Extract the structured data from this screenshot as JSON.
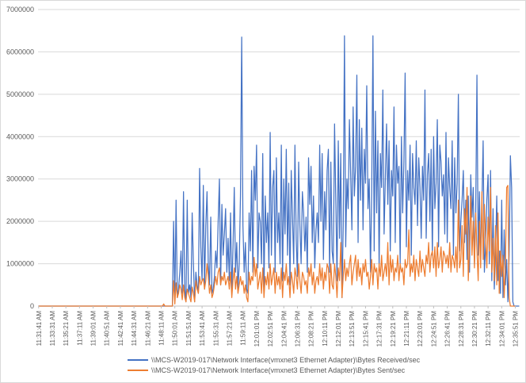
{
  "chart_data": {
    "type": "line",
    "title": "",
    "xlabel": "",
    "ylabel": "",
    "ylim": [
      0,
      7000000
    ],
    "yticks": [
      0,
      1000000,
      2000000,
      3000000,
      4000000,
      5000000,
      6000000,
      7000000
    ],
    "ytick_labels": [
      "0",
      "1000000",
      "2000000",
      "3000000",
      "4000000",
      "5000000",
      "6000000",
      "7000000"
    ],
    "grid": "horizontal",
    "legend_position": "bottom",
    "x_tick_labels": [
      "11:31:41 AM",
      "11:33:31 AM",
      "11:35:21 AM",
      "11:37:11 AM",
      "11:39:01 AM",
      "11:40:51 AM",
      "11:42:41 AM",
      "11:44:31 AM",
      "11:46:21 AM",
      "11:48:11 AM",
      "11:50:01 AM",
      "11:51:51 AM",
      "11:53:41 AM",
      "11:55:31 AM",
      "11:57:21 AM",
      "11:59:11 AM",
      "12:01:01 PM",
      "12:02:51 PM",
      "12:04:41 PM",
      "12:06:31 PM",
      "12:08:21 PM",
      "12:10:11 PM",
      "12:12:01 PM",
      "12:13:51 PM",
      "12:15:41 PM",
      "12:17:31 PM",
      "12:19:21 PM",
      "12:21:11 PM",
      "12:23:01 PM",
      "12:24:51 PM",
      "12:26:41 PM",
      "12:28:31 PM",
      "12:30:21 PM",
      "12:32:11 PM",
      "12:34:01 PM",
      "12:35:51 PM",
      "12:37:41 PM",
      "12:39:31 PM",
      "12:41:21 PM",
      "12:43:11 PM",
      "12:45:01 PM",
      "12:46:51 PM",
      "12:48:41 PM",
      "12:50:31 PM",
      "12:52:21 PM",
      "12:54:11 PM",
      "12:56:01 PM",
      "12:57:51 PM",
      "12:59:41 PM",
      "1:01:31 PM",
      "1:03:21 PM",
      "1:05:11 PM"
    ],
    "x_tick_step_samples": 11,
    "sample_interval_seconds": 10,
    "series": [
      {
        "name": "\\\\MCS-W2019-017\\Network Interface(vmxnet3 Ethernet Adapter)\\Bytes Received/sec",
        "color": "#4472c4",
        "values": [
          0,
          0,
          0,
          0,
          0,
          0,
          0,
          0,
          0,
          0,
          0,
          0,
          0,
          0,
          0,
          0,
          0,
          0,
          0,
          0,
          0,
          0,
          0,
          0,
          0,
          0,
          0,
          0,
          0,
          0,
          0,
          0,
          0,
          0,
          0,
          0,
          0,
          0,
          0,
          0,
          0,
          0,
          0,
          0,
          0,
          0,
          0,
          0,
          0,
          0,
          0,
          0,
          0,
          0,
          0,
          0,
          0,
          0,
          0,
          0,
          0,
          0,
          0,
          0,
          0,
          0,
          0,
          0,
          0,
          0,
          0,
          0,
          0,
          0,
          0,
          0,
          0,
          0,
          0,
          0,
          0,
          0,
          0,
          0,
          0,
          0,
          0,
          0,
          0,
          0,
          0,
          0,
          0,
          0,
          0,
          0,
          0,
          0,
          0,
          0,
          0,
          0,
          0,
          0,
          0,
          0,
          0,
          0,
          0,
          2000000,
          100000,
          2500000,
          200000,
          400000,
          800000,
          1300000,
          300000,
          2700000,
          400000,
          100000,
          2500000,
          300000,
          500000,
          200000,
          2200000,
          1000000,
          100000,
          800000,
          500000,
          300000,
          3250000,
          1400000,
          600000,
          2850000,
          400000,
          1900000,
          2700000,
          1000000,
          500000,
          2100000,
          300000,
          400000,
          700000,
          1300000,
          900000,
          2000000,
          3000000,
          500000,
          2400000,
          1200000,
          1700000,
          2300000,
          800000,
          1600000,
          600000,
          2200000,
          300000,
          1400000,
          2800000,
          800000,
          1500000,
          400000,
          1000000,
          2600000,
          6350000,
          1900000,
          800000,
          1500000,
          400000,
          300000,
          2200000,
          1300000,
          3200000,
          800000,
          3300000,
          2500000,
          3800000,
          900000,
          2200000,
          2000000,
          1000000,
          3600000,
          400000,
          2600000,
          1500000,
          2200000,
          900000,
          4100000,
          1200000,
          2800000,
          3200000,
          800000,
          3500000,
          1500000,
          2200000,
          1000000,
          3800000,
          600000,
          3000000,
          1700000,
          3700000,
          1200000,
          2900000,
          500000,
          3200000,
          2100000,
          1000000,
          3800000,
          1600000,
          700000,
          3400000,
          1900000,
          1000000,
          2700000,
          2200000,
          1300000,
          2100000,
          800000,
          3500000,
          2400000,
          3300000,
          1500000,
          2600000,
          900000,
          1800000,
          2200000,
          1500000,
          3800000,
          2000000,
          3600000,
          1100000,
          2700000,
          1800000,
          3200000,
          3700000,
          800000,
          3400000,
          1300000,
          1000000,
          4300000,
          2500000,
          600000,
          3900000,
          1600000,
          3600000,
          200000,
          1900000,
          6380000,
          1400000,
          3000000,
          2300000,
          4400000,
          3100000,
          1800000,
          4700000,
          2600000,
          3300000,
          5450000,
          1500000,
          4400000,
          2500000,
          4200000,
          1800000,
          3700000,
          2900000,
          5200000,
          2300000,
          3000000,
          800000,
          2700000,
          6380000,
          1300000,
          4600000,
          2200000,
          3900000,
          900000,
          3600000,
          2800000,
          5100000,
          1700000,
          3000000,
          4300000,
          2400000,
          3900000,
          1300000,
          3200000,
          2600000,
          4700000,
          1500000,
          3800000,
          2900000,
          3300000,
          1000000,
          4000000,
          2200000,
          3400000,
          5500000,
          1400000,
          3200000,
          2500000,
          3800000,
          1200000,
          3600000,
          2800000,
          2400000,
          3900000,
          1900000,
          3500000,
          2800000,
          1600000,
          3300000,
          2500000,
          5100000,
          1600000,
          3100000,
          3600000,
          2000000,
          3700000,
          1200000,
          4000000,
          2300000,
          2900000,
          4400000,
          1400000,
          3800000,
          3400000,
          2600000,
          3100000,
          1700000,
          4100000,
          1500000,
          3500000,
          2800000,
          2300000,
          3900000,
          1200000,
          3500000,
          2200000,
          2900000,
          5000000,
          1300000,
          2000000,
          2500000,
          3200000,
          1500000,
          2500000,
          1100000,
          2600000,
          800000,
          3100000,
          2100000,
          2800000,
          1000000,
          2200000,
          5450000,
          1200000,
          2700000,
          1000000,
          2400000,
          3900000,
          800000,
          1400000,
          2500000,
          3100000,
          1000000,
          3200000,
          600000,
          2300000,
          400000,
          1200000,
          2600000,
          600000,
          1300000,
          300000,
          2500000,
          200000,
          1800000,
          500000,
          1100000,
          100000,
          1200000,
          3550000,
          2800000,
          100000,
          0,
          0,
          0,
          0,
          0
        ]
      },
      {
        "name": "\\\\MCS-W2019-017\\Network Interface(vmxnet3 Ethernet Adapter)\\Bytes Sent/sec",
        "color": "#ed7d31",
        "values": [
          0,
          0,
          0,
          0,
          0,
          0,
          0,
          0,
          0,
          0,
          0,
          0,
          0,
          0,
          0,
          0,
          0,
          0,
          0,
          0,
          0,
          0,
          0,
          0,
          0,
          0,
          0,
          0,
          0,
          0,
          0,
          0,
          0,
          0,
          0,
          0,
          0,
          0,
          0,
          0,
          0,
          0,
          0,
          0,
          0,
          0,
          0,
          0,
          0,
          0,
          0,
          0,
          0,
          0,
          0,
          0,
          0,
          0,
          0,
          0,
          0,
          0,
          0,
          0,
          0,
          0,
          0,
          0,
          0,
          0,
          0,
          0,
          0,
          0,
          0,
          0,
          0,
          0,
          0,
          0,
          0,
          0,
          0,
          0,
          0,
          0,
          0,
          0,
          0,
          0,
          0,
          0,
          0,
          0,
          0,
          0,
          0,
          0,
          0,
          0,
          0,
          50000,
          0,
          0,
          0,
          0,
          0,
          0,
          0,
          600000,
          50000,
          550000,
          200000,
          300000,
          500000,
          400000,
          150000,
          500000,
          200000,
          100000,
          400000,
          300000,
          200000,
          100000,
          450000,
          300000,
          100000,
          600000,
          400000,
          300000,
          700000,
          500000,
          600000,
          650000,
          400000,
          600000,
          1000000,
          700000,
          300000,
          500000,
          200000,
          300000,
          500000,
          700000,
          500000,
          800000,
          900000,
          500000,
          700000,
          600000,
          800000,
          500000,
          600000,
          700000,
          400000,
          800000,
          200000,
          600000,
          900000,
          400000,
          700000,
          300000,
          500000,
          700000,
          500000,
          600000,
          300000,
          500000,
          200000,
          100000,
          800000,
          500000,
          700000,
          600000,
          1150000,
          700000,
          1000000,
          400000,
          600000,
          800000,
          300000,
          900000,
          200000,
          700000,
          500000,
          800000,
          400000,
          1000000,
          500000,
          700000,
          900000,
          300000,
          800000,
          500000,
          700000,
          400000,
          900000,
          200000,
          800000,
          600000,
          1000000,
          500000,
          700000,
          200000,
          800000,
          600000,
          300000,
          900000,
          700000,
          400000,
          1000000,
          600000,
          300000,
          800000,
          700000,
          500000,
          600000,
          300000,
          900000,
          700000,
          1000000,
          500000,
          800000,
          300000,
          600000,
          700000,
          500000,
          1000000,
          600000,
          900000,
          400000,
          800000,
          600000,
          1000000,
          900000,
          300000,
          1000000,
          500000,
          400000,
          1000000,
          700000,
          200000,
          900000,
          600000,
          1500000,
          200000,
          700000,
          1100000,
          600000,
          900000,
          700000,
          1000000,
          1200000,
          500000,
          800000,
          1000000,
          1200000,
          600000,
          1100000,
          700000,
          900000,
          500000,
          1000000,
          800000,
          1100000,
          700000,
          800000,
          400000,
          700000,
          1100000,
          500000,
          1000000,
          800000,
          900000,
          400000,
          1000000,
          700000,
          1200000,
          600000,
          800000,
          1000000,
          700000,
          1500000,
          500000,
          1200000,
          800000,
          1100000,
          600000,
          900000,
          800000,
          1200000,
          600000,
          1000000,
          800000,
          900000,
          500000,
          1100000,
          900000,
          1000000,
          1800000,
          700000,
          1000000,
          800000,
          1200000,
          600000,
          1100000,
          900000,
          700000,
          1300000,
          800000,
          1100000,
          900000,
          700000,
          1200000,
          1000000,
          1500000,
          800000,
          1200000,
          1300000,
          900000,
          1400000,
          700000,
          1500000,
          900000,
          1100000,
          1400000,
          800000,
          1300000,
          1200000,
          1000000,
          1200000,
          900000,
          1500000,
          800000,
          1200000,
          1100000,
          900000,
          1400000,
          800000,
          2500000,
          900000,
          1100000,
          1900000,
          700000,
          2300000,
          1700000,
          2800000,
          600000,
          1400000,
          2600000,
          1200000,
          2000000,
          900000,
          2200000,
          1300000,
          600000,
          2000000,
          900000,
          2700000,
          1100000,
          2400000,
          1600000,
          900000,
          2100000,
          1300000,
          2800000,
          800000,
          1600000,
          600000,
          1900000,
          500000,
          2200000,
          300000,
          1300000,
          700000,
          1200000,
          200000,
          1000000,
          2800000,
          2850000,
          200000,
          0,
          0,
          0,
          0,
          0
        ]
      }
    ]
  }
}
